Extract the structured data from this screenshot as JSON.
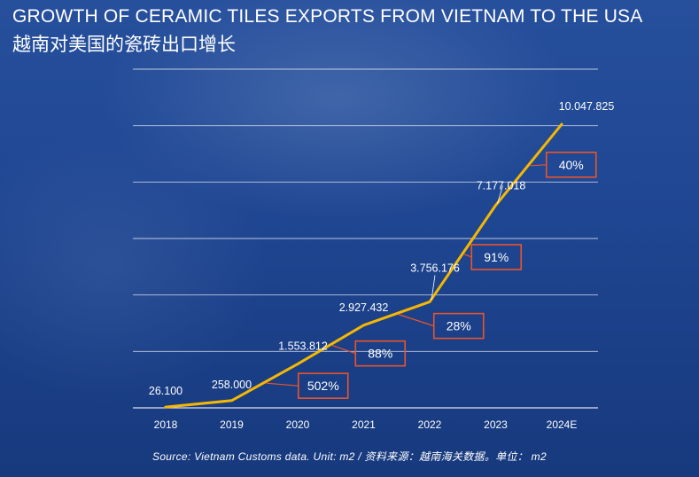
{
  "title": "GROWTH OF CERAMIC TILES EXPORTS FROM VIETNAM TO THE USA",
  "subtitle": "越南对美国的瓷砖出口增长",
  "source": "Source: Vietnam Customs data. Unit: m2 / 资料来源：越南海关数据。单位： m2",
  "colors": {
    "background": "#1d4590",
    "line": "#f5b800",
    "growth_box_border": "#e8552a",
    "gridline": "#ffffff",
    "text": "#ffffff"
  },
  "chart_data": {
    "type": "line",
    "categories": [
      "2018",
      "2019",
      "2020",
      "2021",
      "2022",
      "2023",
      "2024E"
    ],
    "values": [
      26100,
      258000,
      1553812,
      2927432,
      3756176,
      7177018,
      10047825
    ],
    "data_labels": [
      "26.100",
      "258.000",
      "1.553.812",
      "2.927.432",
      "3.756.176",
      "7.177.018",
      "10.047.825"
    ],
    "growth_labels": [
      "502%",
      "88%",
      "28%",
      "91%",
      "40%"
    ],
    "ylim": [
      0,
      12000000
    ],
    "y_ticks_labeled": false,
    "grid": true,
    "legend": "none"
  }
}
